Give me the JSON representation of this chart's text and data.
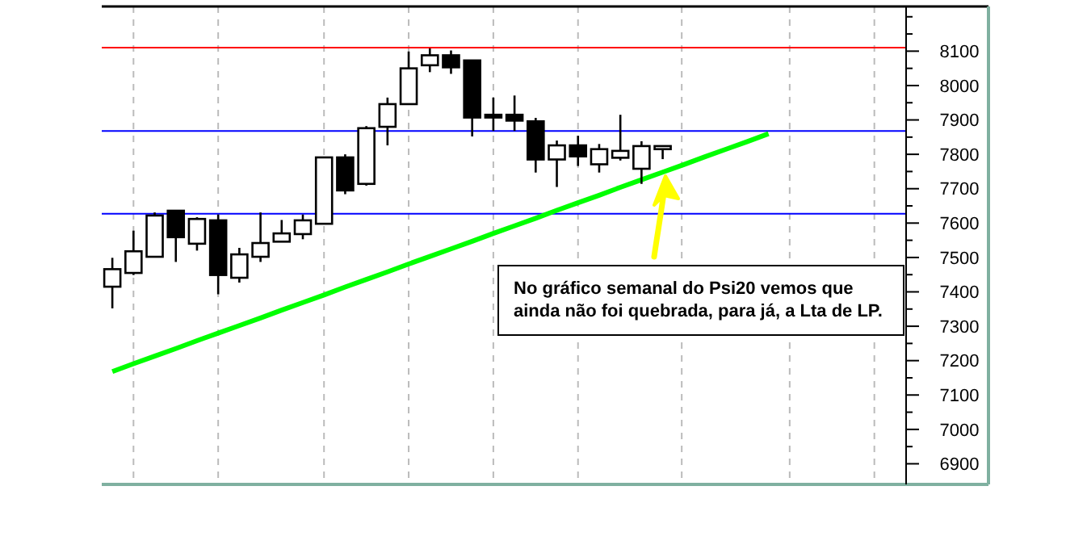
{
  "chart_data": {
    "type": "candlestick",
    "categories": [
      null,
      null,
      null,
      null,
      null,
      null,
      null,
      null,
      null,
      null,
      null,
      null,
      null,
      null,
      null,
      null,
      null,
      null,
      null,
      null,
      null,
      null,
      null,
      null,
      null,
      null,
      null,
      null,
      null,
      null,
      null,
      null,
      null,
      null,
      null,
      null,
      null,
      null
    ],
    "ohlc": [
      [
        7415,
        7499,
        7352,
        7466
      ],
      [
        7455,
        7578,
        7449,
        7518
      ],
      [
        7502,
        7631,
        7502,
        7622
      ],
      [
        7636,
        7636,
        7487,
        7559
      ],
      [
        7540,
        7617,
        7520,
        7612
      ],
      [
        7608,
        7625,
        7393,
        7449
      ],
      [
        7441,
        7528,
        7427,
        7509
      ],
      [
        7502,
        7631,
        7487,
        7542
      ],
      [
        7546,
        7609,
        7546,
        7570
      ],
      [
        7568,
        7625,
        7553,
        7608
      ],
      [
        7598,
        7791,
        7598,
        7791
      ],
      [
        7791,
        7800,
        7684,
        7695
      ],
      [
        7714,
        7882,
        7709,
        7876
      ],
      [
        7880,
        7965,
        7826,
        7946
      ],
      [
        7946,
        8099,
        7946,
        8050
      ],
      [
        8059,
        8108,
        8039,
        8088
      ],
      [
        8088,
        8102,
        8034,
        8053
      ],
      [
        8073,
        8073,
        7852,
        7907
      ],
      [
        7915,
        7965,
        7868,
        7907
      ],
      [
        7915,
        7971,
        7868,
        7898
      ],
      [
        7896,
        7906,
        7747,
        7785
      ],
      [
        7785,
        7840,
        7705,
        7826
      ],
      [
        7826,
        7854,
        7766,
        7794
      ],
      [
        7771,
        7830,
        7747,
        7815
      ],
      [
        7790,
        7915,
        7782,
        7810
      ],
      [
        7758,
        7838,
        7714,
        7824
      ],
      [
        7815,
        7824,
        7786,
        7824
      ],
      null,
      null,
      null,
      null,
      null,
      null,
      null,
      null,
      null,
      null,
      null
    ],
    "series": [
      {
        "type": "line",
        "color": "#00ff00",
        "values": [
          7168,
          7191,
          7213,
          7235,
          7258,
          7280,
          7302,
          7324,
          7347,
          7369,
          7391,
          7414,
          7436,
          7458,
          7481,
          7503,
          7525,
          7547,
          7570,
          7592,
          7614,
          7637,
          7659,
          7681,
          7704,
          7726,
          7748,
          7770,
          7793,
          7815,
          7837,
          7860,
          null,
          null,
          null,
          null,
          null,
          null
        ]
      }
    ],
    "ylim": [
      6840,
      8230
    ],
    "yticks": [
      6900,
      {
        "value": 6950,
        "label": null
      },
      7000,
      {
        "value": 7050,
        "label": null
      },
      7100,
      {
        "value": 7150,
        "label": null
      },
      7200,
      {
        "value": 7250,
        "label": null
      },
      7300,
      {
        "value": 7350,
        "label": null
      },
      7400,
      {
        "value": 7450,
        "label": null
      },
      7500,
      {
        "value": 7550,
        "label": null
      },
      7600,
      {
        "value": 7650,
        "label": null
      },
      7700,
      {
        "value": 7750,
        "label": null
      },
      7800,
      {
        "value": 7850,
        "label": null
      },
      7900,
      {
        "value": 7950,
        "label": null
      },
      8000,
      {
        "value": 8050,
        "label": null
      },
      8100,
      {
        "value": 8150,
        "label": null
      },
      {
        "value": 8200,
        "label": null
      }
    ],
    "tick_labels": "y",
    "grid": "x",
    "ref_lines": [
      {
        "axis": "y",
        "value": 8110,
        "color": "#ff0000"
      },
      {
        "axis": "y",
        "value": 7868,
        "color": "#0000ff"
      },
      {
        "axis": "y",
        "value": 7627,
        "color": "#0000ff"
      }
    ],
    "annotations": [
      "No gráfico semanal do Psi20 vemos que ainda não foi quebrada, para já, a Lta de LP."
    ]
  }
}
